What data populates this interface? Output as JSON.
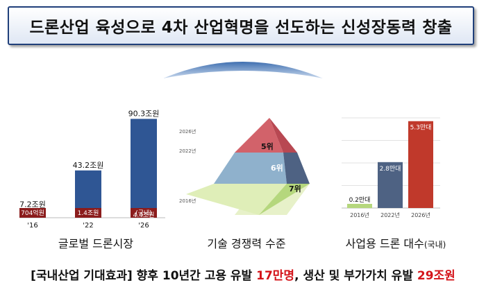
{
  "title": "드론산업 육성으로 4차 산업혁명을 선도하는 신성장동력 창출",
  "colors": {
    "blue": "#2f5694",
    "darkred": "#8b1c1c",
    "red": "#c0392b",
    "slate": "#4e6283",
    "green": "#b5d77d"
  },
  "chart_data": [
    {
      "type": "bar",
      "title": "",
      "caption": "글로벌 드론시장",
      "categories": [
        "'16",
        "'22",
        "'26"
      ],
      "series": [
        {
          "values": [
            7.2,
            43.2,
            90.3
          ],
          "labels": [
            "7.2조원",
            "43.2조원",
            "90.3조원"
          ]
        },
        {
          "values": [
            0.0704,
            1.4,
            4.4
          ],
          "labels": [
            "704억원",
            "1.4조원",
            "4.4조원"
          ]
        }
      ],
      "annotation": "(국내)",
      "ylim": [
        0,
        95
      ]
    },
    {
      "type": "pyramid",
      "caption": "기술 경쟁력 수준",
      "years": [
        "2026년",
        "2022년",
        "2016년"
      ],
      "ranks": [
        "5위",
        "6위",
        "7위"
      ]
    },
    {
      "type": "bar",
      "caption": "사업용 드론 대수",
      "caption_suffix": "(국내)",
      "categories": [
        "2016년",
        "2022년",
        "2026년"
      ],
      "values": [
        0.2,
        2.8,
        5.3
      ],
      "labels": [
        "0.2만대",
        "2.8만대",
        "5.3만대"
      ],
      "ylim": [
        0,
        5.5
      ]
    }
  ],
  "footer": {
    "prefix": "[국내산업 기대효과] 향후 10년간 고용 유발 ",
    "jobs": "17만명",
    "middle": ", 생산 및 부가가치 유발 ",
    "value": "29조원"
  }
}
